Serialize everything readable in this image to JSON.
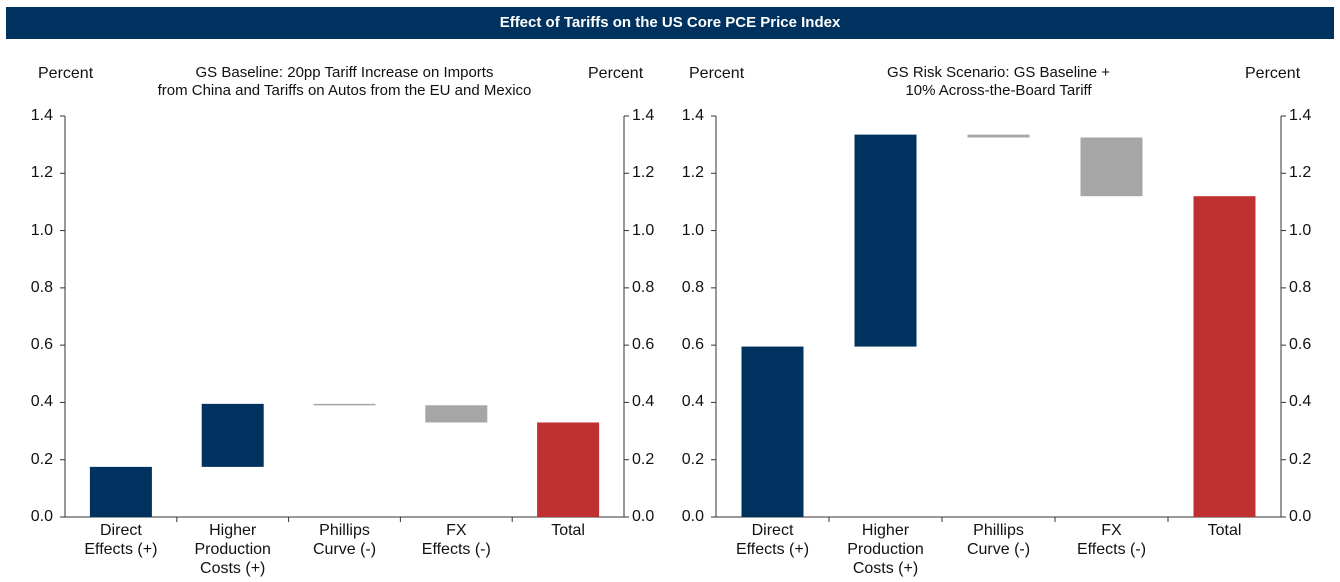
{
  "title": "Effect of Tariffs on the US Core PCE Price Index",
  "chart_data": [
    {
      "type": "waterfall",
      "title": "GS Baseline: 20pp Tariff Increase on Imports\nfrom China and Tariffs on Autos from the EU and Mexico",
      "y_label": "Percent",
      "y2_label": "Percent",
      "categories": [
        "Direct\nEffects (+)",
        "Higher\nProduction\nCosts (+)",
        "Phillips\nCurve (-)",
        "FX\nEffects (-)",
        "Total"
      ],
      "values": [
        0.175,
        0.22,
        -0.005,
        -0.06,
        0.33
      ],
      "is_total": [
        false,
        false,
        false,
        false,
        true
      ],
      "colors": [
        "#00325f",
        "#00325f",
        "#a6a6a6",
        "#a6a6a6",
        "#c03030"
      ],
      "ylim": [
        0,
        1.4
      ],
      "yticks": [
        {
          "value": 0,
          "label": "0.0"
        },
        0.2,
        0.4,
        0.6,
        0.8,
        {
          "value": 1,
          "label": "1.0"
        },
        1.2,
        1.4
      ],
      "y2lim": [
        0,
        1.4
      ],
      "y2ticks": [
        {
          "value": 0,
          "label": "0.0"
        },
        0.2,
        0.4,
        0.6,
        0.8,
        {
          "value": 1,
          "label": "1.0"
        },
        1.2,
        1.4
      ]
    },
    {
      "type": "waterfall",
      "title": "GS Risk Scenario: GS Baseline +\n10% Across-the-Board Tariff",
      "y_label": "Percent",
      "y2_label": "Percent",
      "categories": [
        "Direct\nEffects (+)",
        "Higher\nProduction\nCosts (+)",
        "Phillips\nCurve (-)",
        "FX\nEffects (-)",
        "Total"
      ],
      "values": [
        0.595,
        0.74,
        -0.01,
        -0.205,
        1.12
      ],
      "is_total": [
        false,
        false,
        false,
        false,
        true
      ],
      "colors": [
        "#00325f",
        "#00325f",
        "#a6a6a6",
        "#a6a6a6",
        "#c03030"
      ],
      "ylim": [
        0,
        1.4
      ],
      "yticks": [
        {
          "value": 0,
          "label": "0.0"
        },
        0.2,
        0.4,
        0.6,
        0.8,
        {
          "value": 1,
          "label": "1.0"
        },
        1.2,
        1.4
      ],
      "y2lim": [
        0,
        1.4
      ],
      "y2ticks": [
        {
          "value": 0,
          "label": "0.0"
        },
        0.2,
        0.4,
        0.6,
        0.8,
        {
          "value": 1,
          "label": "1.0"
        },
        1.2,
        1.4
      ]
    }
  ]
}
